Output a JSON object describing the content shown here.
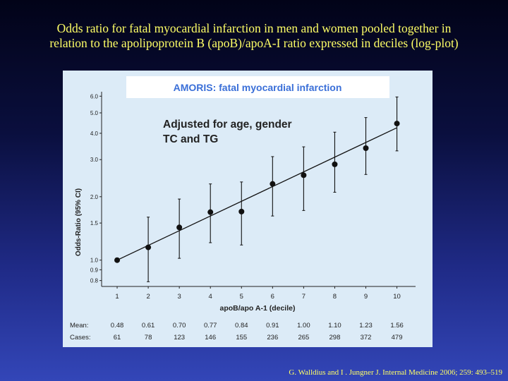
{
  "slide": {
    "title_line1": "Odds ratio for fatal myocardial infarction in men and women pooled together in",
    "title_line2": "relation to the apolipoprotein B (apoB)/apoA-I ratio expressed in deciles (log-plot)",
    "citation": "G. Walldius and  I . Jungner J. Internal Medicine 2006; 259: 493–519"
  },
  "colors": {
    "title": "#ffff66",
    "panel_bg": "#dcebf7",
    "header_bg": "#ffffff",
    "header_text": "#3a6fd8",
    "ink": "#111111"
  },
  "chart_data": {
    "type": "scatter",
    "title": "AMORIS: fatal myocardial infarction",
    "annotation_line1": "Adjusted for age, gender",
    "annotation_line2": "TC and TG",
    "xlabel": "apoB/apo A-1 (decile)",
    "ylabel": "Odds-Ratio (95% CI)",
    "yscale": "log",
    "ylim": [
      0.75,
      6.3
    ],
    "xlim": [
      0.5,
      10.6
    ],
    "x": [
      1,
      2,
      3,
      4,
      5,
      6,
      7,
      8,
      9,
      10
    ],
    "x_tick_labels": [
      "1",
      "2",
      "3",
      "4",
      "5",
      "6",
      "7",
      "8",
      "9",
      "10"
    ],
    "y_ticks": [
      0.8,
      0.9,
      1.0,
      1.5,
      2.0,
      3.0,
      4.0,
      5.0,
      6.0
    ],
    "y_tick_labels": [
      "0.8",
      "0.9",
      "1.0",
      "1.5",
      "2.0",
      "3.0",
      "4.0",
      "5.0",
      "6.0"
    ],
    "series": [
      {
        "odds_ratio": [
          1.0,
          1.15,
          1.43,
          1.69,
          1.7,
          2.3,
          2.53,
          2.85,
          3.4,
          4.45
        ],
        "ci_low": [
          1.0,
          0.79,
          1.02,
          1.21,
          1.18,
          1.62,
          1.72,
          2.1,
          2.55,
          3.3
        ],
        "ci_high": [
          1.0,
          1.6,
          1.95,
          2.3,
          2.35,
          3.1,
          3.45,
          4.05,
          4.75,
          5.95
        ]
      }
    ],
    "trend_line": {
      "x": [
        1,
        10
      ],
      "y": [
        1.0,
        4.25
      ]
    },
    "table": {
      "row_labels": [
        "Mean:",
        "Cases:"
      ],
      "mean": [
        "0.48",
        "0.61",
        "0.70",
        "0.77",
        "0.84",
        "0.91",
        "1.00",
        "1.10",
        "1.23",
        "1.56"
      ],
      "cases": [
        "61",
        "78",
        "123",
        "146",
        "155",
        "236",
        "265",
        "298",
        "372",
        "479"
      ]
    },
    "grid": false,
    "legend": "none"
  }
}
